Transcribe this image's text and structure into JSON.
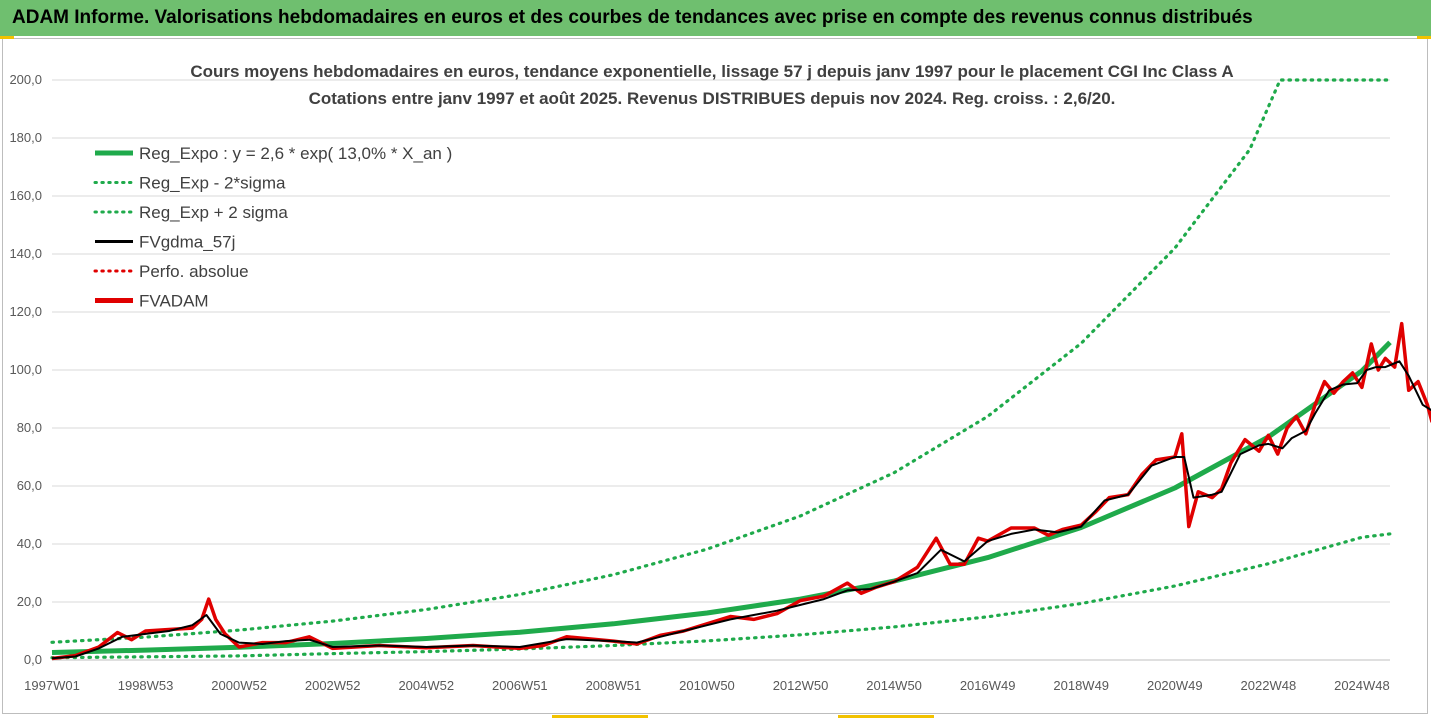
{
  "banner": {
    "title": "ADAM Informe. Valorisations hebdomadaires en euros et des courbes de tendances avec prise en compte des revenus connus distribués"
  },
  "colors": {
    "banner_bg": "#6fbf6f",
    "green": "#1faa4b",
    "black": "#000000",
    "red": "#e00000",
    "grid": "#d9d9d9",
    "accent_corner": "#f2c200"
  },
  "chart_data": {
    "type": "line",
    "title_line1": "Cours moyens hebdomadaires en euros, tendance exponentielle, lissage 57 j depuis janv 1997 pour le placement CGI Inc Class A",
    "title_line2": "Cotations entre janv 1997 et août 2025. Revenus DISTRIBUES depuis nov 2024. Reg. croiss. : 2,6/20.",
    "ylim": [
      0,
      200
    ],
    "y_ticks": [
      "0,0",
      "20,0",
      "40,0",
      "60,0",
      "80,0",
      "100,0",
      "120,0",
      "140,0",
      "160,0",
      "180,0",
      "200,0"
    ],
    "x_range_years": [
      1997.0,
      2025.6
    ],
    "x_ticks": [
      {
        "label": "1997W01",
        "year": 1997.0
      },
      {
        "label": "1998W53",
        "year": 1999.0
      },
      {
        "label": "2000W52",
        "year": 2001.0
      },
      {
        "label": "2002W52",
        "year": 2003.0
      },
      {
        "label": "2004W52",
        "year": 2005.0
      },
      {
        "label": "2006W51",
        "year": 2007.0
      },
      {
        "label": "2008W51",
        "year": 2009.0
      },
      {
        "label": "2010W50",
        "year": 2011.0
      },
      {
        "label": "2012W50",
        "year": 2013.0
      },
      {
        "label": "2014W50",
        "year": 2015.0
      },
      {
        "label": "2016W49",
        "year": 2017.0
      },
      {
        "label": "2018W49",
        "year": 2019.0
      },
      {
        "label": "2020W49",
        "year": 2021.0
      },
      {
        "label": "2022W48",
        "year": 2023.0
      },
      {
        "label": "2024W48",
        "year": 2025.0
      }
    ],
    "grid": "horizontal",
    "legend_position": "top-left",
    "series": [
      {
        "name": "Reg_Expo : y = 2,6 * exp( 13,0% *  X_an )",
        "style": "solid",
        "color": "#1faa4b",
        "points": [
          [
            1997.0,
            2.6
          ],
          [
            1999.0,
            3.4
          ],
          [
            2001.0,
            4.4
          ],
          [
            2003.0,
            5.7
          ],
          [
            2005.0,
            7.4
          ],
          [
            2007.0,
            9.6
          ],
          [
            2009.0,
            12.5
          ],
          [
            2011.0,
            16.2
          ],
          [
            2013.0,
            21.0
          ],
          [
            2015.0,
            27.2
          ],
          [
            2017.0,
            35.3
          ],
          [
            2019.0,
            45.7
          ],
          [
            2021.0,
            59.3
          ],
          [
            2023.0,
            76.9
          ],
          [
            2025.0,
            99.7
          ],
          [
            2025.6,
            109.5
          ]
        ]
      },
      {
        "name": "Reg_Exp - 2*sigma",
        "style": "dotted",
        "color": "#1faa4b",
        "points": [
          [
            1997.0,
            0.8
          ],
          [
            1999.0,
            1.1
          ],
          [
            2001.0,
            1.4
          ],
          [
            2003.0,
            2.2
          ],
          [
            2005.0,
            2.9
          ],
          [
            2007.0,
            3.8
          ],
          [
            2009.0,
            5.0
          ],
          [
            2011.0,
            6.6
          ],
          [
            2013.0,
            8.7
          ],
          [
            2015.0,
            11.4
          ],
          [
            2017.0,
            14.9
          ],
          [
            2019.0,
            19.5
          ],
          [
            2021.0,
            25.5
          ],
          [
            2023.0,
            33.2
          ],
          [
            2025.0,
            42.3
          ],
          [
            2025.6,
            43.5
          ]
        ]
      },
      {
        "name": "Reg_Exp + 2 sigma",
        "style": "dotted",
        "color": "#1faa4b",
        "points": [
          [
            1997.0,
            6.1
          ],
          [
            1999.0,
            7.9
          ],
          [
            2001.0,
            10.3
          ],
          [
            2003.0,
            13.4
          ],
          [
            2005.0,
            17.4
          ],
          [
            2007.0,
            22.6
          ],
          [
            2009.0,
            29.4
          ],
          [
            2011.0,
            38.2
          ],
          [
            2013.0,
            49.7
          ],
          [
            2015.0,
            64.6
          ],
          [
            2017.0,
            84.0
          ],
          [
            2019.0,
            109.2
          ],
          [
            2021.0,
            142.0
          ],
          [
            2022.6,
            176.0
          ],
          [
            2023.25,
            200.0
          ],
          [
            2025.6,
            200.0
          ]
        ]
      },
      {
        "name": "FVgdma_57j",
        "style": "solid",
        "color": "#000000",
        "points": [
          [
            1997.0,
            0.6
          ],
          [
            1997.5,
            1.2
          ],
          [
            1998.0,
            4.0
          ],
          [
            1998.5,
            8.0
          ],
          [
            1999.0,
            9.0
          ],
          [
            1999.5,
            10.0
          ],
          [
            2000.0,
            12.0
          ],
          [
            2000.3,
            15.5
          ],
          [
            2000.6,
            9.0
          ],
          [
            2001.0,
            6.0
          ],
          [
            2001.5,
            5.5
          ],
          [
            2002.0,
            6.5
          ],
          [
            2002.5,
            7.0
          ],
          [
            2003.0,
            4.5
          ],
          [
            2004.0,
            5.0
          ],
          [
            2005.0,
            4.5
          ],
          [
            2006.0,
            5.0
          ],
          [
            2007.0,
            4.5
          ],
          [
            2008.0,
            7.2
          ],
          [
            2009.0,
            6.5
          ],
          [
            2009.5,
            6.0
          ],
          [
            2010.0,
            8.0
          ],
          [
            2010.5,
            10.0
          ],
          [
            2011.0,
            12.0
          ],
          [
            2011.5,
            14.0
          ],
          [
            2012.0,
            15.5
          ],
          [
            2012.5,
            17.0
          ],
          [
            2013.0,
            19.0
          ],
          [
            2013.5,
            21.0
          ],
          [
            2014.0,
            24.0
          ],
          [
            2014.5,
            24.5
          ],
          [
            2015.0,
            27.0
          ],
          [
            2015.5,
            30.0
          ],
          [
            2016.0,
            38.0
          ],
          [
            2016.5,
            34.0
          ],
          [
            2017.0,
            41.0
          ],
          [
            2017.5,
            43.5
          ],
          [
            2018.0,
            45.0
          ],
          [
            2018.5,
            44.0
          ],
          [
            2019.0,
            46.0
          ],
          [
            2019.5,
            55.0
          ],
          [
            2020.0,
            57.0
          ],
          [
            2020.5,
            67.0
          ],
          [
            2021.0,
            70.0
          ],
          [
            2021.2,
            70.0
          ],
          [
            2021.4,
            56.0
          ],
          [
            2021.8,
            57.0
          ],
          [
            2022.0,
            58.0
          ],
          [
            2022.4,
            71.0
          ],
          [
            2022.8,
            74.0
          ],
          [
            2023.0,
            74.5
          ],
          [
            2023.3,
            73.0
          ],
          [
            2023.5,
            76.5
          ],
          [
            2023.8,
            79.0
          ],
          [
            2024.0,
            85.0
          ],
          [
            2024.3,
            93.0
          ],
          [
            2024.6,
            95.0
          ],
          [
            2024.9,
            95.5
          ],
          [
            2025.1,
            100.0
          ],
          [
            2025.3,
            101.0
          ],
          [
            2025.5,
            101.0
          ],
          [
            2025.8,
            103.0
          ],
          [
            2026.0,
            98.0
          ],
          [
            2026.3,
            88.0
          ],
          [
            2026.6,
            85.0
          ]
        ]
      },
      {
        "name": "Perfo. absolue",
        "style": "dotted",
        "color": "#e00000",
        "points": []
      },
      {
        "name": "FVADAM",
        "style": "solid",
        "color": "#e00000",
        "points": [
          [
            1997.0,
            0.5
          ],
          [
            1997.5,
            1.5
          ],
          [
            1998.0,
            4.5
          ],
          [
            1998.4,
            9.5
          ],
          [
            1998.7,
            7.0
          ],
          [
            1999.0,
            10.0
          ],
          [
            1999.5,
            10.5
          ],
          [
            2000.0,
            11.0
          ],
          [
            2000.2,
            14.0
          ],
          [
            2000.35,
            21.0
          ],
          [
            2000.5,
            14.0
          ],
          [
            2000.7,
            9.0
          ],
          [
            2001.0,
            4.5
          ],
          [
            2001.5,
            6.0
          ],
          [
            2002.0,
            6.0
          ],
          [
            2002.5,
            8.0
          ],
          [
            2003.0,
            4.0
          ],
          [
            2004.0,
            5.0
          ],
          [
            2005.0,
            4.2
          ],
          [
            2006.0,
            5.0
          ],
          [
            2007.0,
            4.0
          ],
          [
            2007.5,
            5.0
          ],
          [
            2008.0,
            8.0
          ],
          [
            2009.0,
            6.5
          ],
          [
            2009.5,
            5.5
          ],
          [
            2010.0,
            8.5
          ],
          [
            2010.5,
            10.0
          ],
          [
            2011.0,
            12.5
          ],
          [
            2011.5,
            15.0
          ],
          [
            2012.0,
            14.0
          ],
          [
            2012.5,
            16.0
          ],
          [
            2013.0,
            20.5
          ],
          [
            2013.5,
            22.0
          ],
          [
            2014.0,
            26.5
          ],
          [
            2014.3,
            23.0
          ],
          [
            2014.6,
            25.0
          ],
          [
            2015.0,
            27.0
          ],
          [
            2015.5,
            32.0
          ],
          [
            2015.9,
            42.0
          ],
          [
            2016.2,
            33.0
          ],
          [
            2016.5,
            33.0
          ],
          [
            2016.8,
            42.0
          ],
          [
            2017.0,
            41.0
          ],
          [
            2017.5,
            45.5
          ],
          [
            2018.0,
            45.5
          ],
          [
            2018.3,
            43.0
          ],
          [
            2018.6,
            45.0
          ],
          [
            2019.0,
            46.5
          ],
          [
            2019.3,
            51.0
          ],
          [
            2019.6,
            56.0
          ],
          [
            2020.0,
            57.0
          ],
          [
            2020.3,
            64.0
          ],
          [
            2020.6,
            69.0
          ],
          [
            2021.0,
            70.0
          ],
          [
            2021.15,
            78.0
          ],
          [
            2021.3,
            46.0
          ],
          [
            2021.5,
            58.0
          ],
          [
            2021.8,
            56.0
          ],
          [
            2022.0,
            59.0
          ],
          [
            2022.2,
            68.0
          ],
          [
            2022.5,
            76.0
          ],
          [
            2022.8,
            72.0
          ],
          [
            2023.0,
            77.5
          ],
          [
            2023.2,
            71.0
          ],
          [
            2023.4,
            80.0
          ],
          [
            2023.6,
            84.0
          ],
          [
            2023.8,
            78.0
          ],
          [
            2024.0,
            88.0
          ],
          [
            2024.2,
            96.0
          ],
          [
            2024.4,
            92.0
          ],
          [
            2024.6,
            96.0
          ],
          [
            2024.8,
            99.0
          ],
          [
            2025.0,
            94.0
          ],
          [
            2025.2,
            109.0
          ],
          [
            2025.35,
            100.0
          ],
          [
            2025.5,
            104.0
          ],
          [
            2025.7,
            101.0
          ],
          [
            2025.85,
            116.0
          ],
          [
            2026.0,
            93.0
          ],
          [
            2026.2,
            96.0
          ],
          [
            2026.4,
            88.0
          ],
          [
            2026.5,
            82.0
          ]
        ]
      }
    ]
  }
}
